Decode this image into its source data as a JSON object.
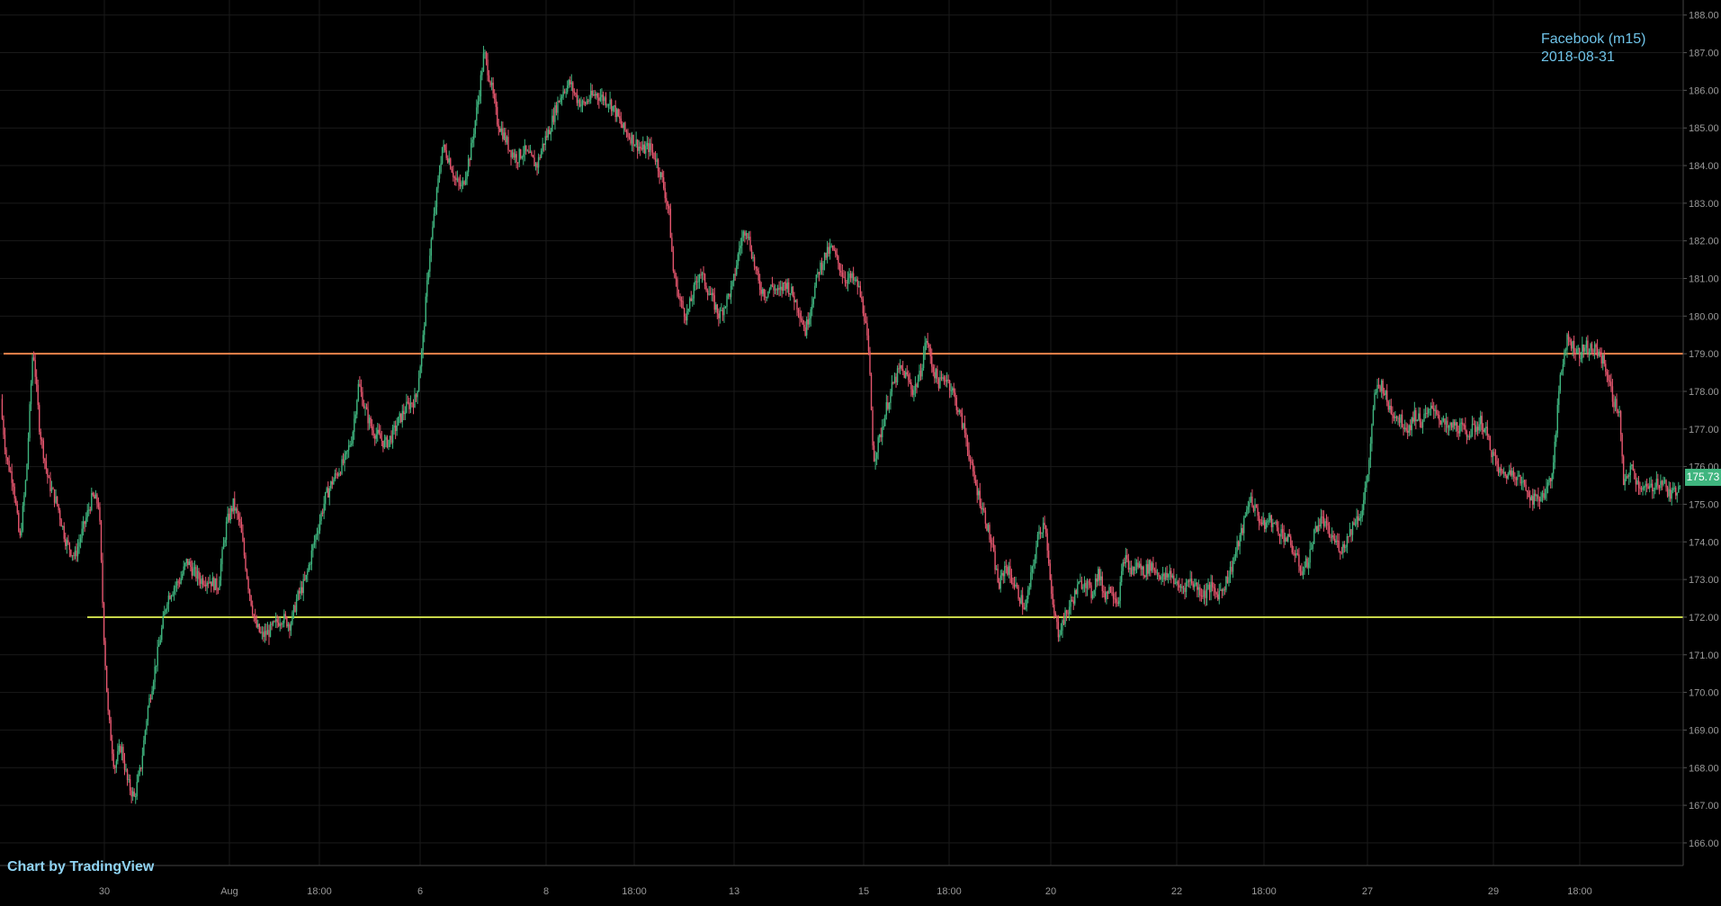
{
  "chart_data": {
    "type": "candlestick",
    "symbol": "Facebook (m15)",
    "date": "2018-08-31",
    "credit": {
      "prefix": "Chart by",
      "brand": "TradingView"
    },
    "last_price": "175.73",
    "ylim": [
      165.4,
      188.4
    ],
    "y_ticks": [
      "166.00",
      "167.00",
      "168.00",
      "169.00",
      "170.00",
      "171.00",
      "172.00",
      "173.00",
      "174.00",
      "175.00",
      "176.00",
      "177.00",
      "178.00",
      "179.00",
      "180.00",
      "181.00",
      "182.00",
      "183.00",
      "184.00",
      "185.00",
      "186.00",
      "187.00",
      "188.00"
    ],
    "x_ticks": [
      "30",
      "Aug",
      "18:00",
      "6",
      "8",
      "18:00",
      "13",
      "15",
      "18:00",
      "20",
      "22",
      "18:00",
      "27",
      "29",
      "18:00"
    ],
    "horizontal_lines": [
      {
        "value": 179.0,
        "color": "#f0844c"
      },
      {
        "value": 172.0,
        "color": "#c8d64a"
      }
    ],
    "price_path": [
      [
        0,
        177.8
      ],
      [
        6,
        176.2
      ],
      [
        12,
        175.6
      ],
      [
        18,
        174.0
      ],
      [
        24,
        175.8
      ],
      [
        30,
        179.2
      ],
      [
        36,
        177.0
      ],
      [
        44,
        175.6
      ],
      [
        52,
        175.0
      ],
      [
        60,
        174.0
      ],
      [
        68,
        173.6
      ],
      [
        76,
        174.4
      ],
      [
        84,
        175.2
      ],
      [
        90,
        175.0
      ],
      [
        94,
        171.8
      ],
      [
        98,
        169.5
      ],
      [
        104,
        168.0
      ],
      [
        110,
        168.6
      ],
      [
        116,
        167.6
      ],
      [
        122,
        167.2
      ],
      [
        128,
        168.0
      ],
      [
        134,
        169.5
      ],
      [
        140,
        170.5
      ],
      [
        146,
        171.5
      ],
      [
        152,
        172.5
      ],
      [
        158,
        172.8
      ],
      [
        164,
        173.0
      ],
      [
        170,
        173.5
      ],
      [
        176,
        173.2
      ],
      [
        182,
        173.0
      ],
      [
        190,
        173.0
      ],
      [
        198,
        172.8
      ],
      [
        206,
        174.5
      ],
      [
        212,
        175.0
      ],
      [
        218,
        174.5
      ],
      [
        226,
        172.8
      ],
      [
        232,
        171.8
      ],
      [
        238,
        171.5
      ],
      [
        244,
        171.6
      ],
      [
        250,
        171.8
      ],
      [
        256,
        172.0
      ],
      [
        264,
        171.8
      ],
      [
        270,
        172.5
      ],
      [
        278,
        173.0
      ],
      [
        284,
        173.8
      ],
      [
        290,
        174.5
      ],
      [
        296,
        175.2
      ],
      [
        302,
        175.6
      ],
      [
        308,
        175.9
      ],
      [
        314,
        176.2
      ],
      [
        320,
        176.8
      ],
      [
        326,
        178.2
      ],
      [
        332,
        177.5
      ],
      [
        338,
        177.0
      ],
      [
        344,
        176.8
      ],
      [
        350,
        176.6
      ],
      [
        356,
        176.8
      ],
      [
        362,
        177.2
      ],
      [
        370,
        177.6
      ],
      [
        378,
        177.8
      ],
      [
        384,
        179.2
      ],
      [
        390,
        181.5
      ],
      [
        396,
        183.0
      ],
      [
        402,
        184.5
      ],
      [
        408,
        184.2
      ],
      [
        414,
        183.6
      ],
      [
        420,
        183.4
      ],
      [
        428,
        184.4
      ],
      [
        434,
        185.6
      ],
      [
        440,
        187.0
      ],
      [
        446,
        186.2
      ],
      [
        452,
        185.2
      ],
      [
        458,
        184.8
      ],
      [
        464,
        184.4
      ],
      [
        470,
        184.2
      ],
      [
        476,
        184.4
      ],
      [
        482,
        184.2
      ],
      [
        488,
        184.0
      ],
      [
        494,
        184.6
      ],
      [
        500,
        185.0
      ],
      [
        506,
        185.6
      ],
      [
        512,
        186.0
      ],
      [
        518,
        186.2
      ],
      [
        524,
        185.8
      ],
      [
        530,
        185.6
      ],
      [
        536,
        185.8
      ],
      [
        542,
        185.9
      ],
      [
        548,
        185.8
      ],
      [
        554,
        185.7
      ],
      [
        560,
        185.4
      ],
      [
        566,
        185.0
      ],
      [
        572,
        184.8
      ],
      [
        578,
        184.6
      ],
      [
        584,
        184.4
      ],
      [
        590,
        184.5
      ],
      [
        596,
        184.2
      ],
      [
        602,
        183.6
      ],
      [
        608,
        182.8
      ],
      [
        612,
        181.2
      ],
      [
        618,
        180.4
      ],
      [
        624,
        180.0
      ],
      [
        630,
        180.6
      ],
      [
        636,
        181.2
      ],
      [
        642,
        180.8
      ],
      [
        648,
        180.4
      ],
      [
        654,
        180.0
      ],
      [
        660,
        180.4
      ],
      [
        666,
        180.8
      ],
      [
        672,
        181.8
      ],
      [
        678,
        182.4
      ],
      [
        684,
        181.6
      ],
      [
        690,
        180.8
      ],
      [
        696,
        180.6
      ],
      [
        702,
        180.8
      ],
      [
        708,
        180.6
      ],
      [
        714,
        180.9
      ],
      [
        720,
        180.6
      ],
      [
        726,
        180.2
      ],
      [
        732,
        179.6
      ],
      [
        738,
        180.4
      ],
      [
        744,
        181.2
      ],
      [
        750,
        181.6
      ],
      [
        756,
        181.8
      ],
      [
        762,
        181.4
      ],
      [
        768,
        181.0
      ],
      [
        774,
        181.0
      ],
      [
        780,
        180.8
      ],
      [
        786,
        180.0
      ],
      [
        790,
        178.8
      ],
      [
        794,
        176.2
      ],
      [
        800,
        176.8
      ],
      [
        806,
        177.6
      ],
      [
        812,
        178.2
      ],
      [
        818,
        178.6
      ],
      [
        824,
        178.4
      ],
      [
        830,
        178.0
      ],
      [
        836,
        178.4
      ],
      [
        842,
        179.4
      ],
      [
        848,
        178.6
      ],
      [
        854,
        178.2
      ],
      [
        860,
        178.4
      ],
      [
        866,
        178.0
      ],
      [
        872,
        177.4
      ],
      [
        878,
        176.8
      ],
      [
        884,
        175.8
      ],
      [
        890,
        175.2
      ],
      [
        896,
        174.6
      ],
      [
        902,
        173.8
      ],
      [
        908,
        172.8
      ],
      [
        914,
        173.4
      ],
      [
        920,
        173.0
      ],
      [
        926,
        172.6
      ],
      [
        932,
        172.2
      ],
      [
        938,
        173.2
      ],
      [
        944,
        174.2
      ],
      [
        950,
        174.6
      ],
      [
        956,
        172.4
      ],
      [
        962,
        171.6
      ],
      [
        968,
        172.0
      ],
      [
        974,
        172.4
      ],
      [
        980,
        172.8
      ],
      [
        986,
        173.0
      ],
      [
        992,
        172.6
      ],
      [
        998,
        173.2
      ],
      [
        1004,
        172.6
      ],
      [
        1010,
        172.8
      ],
      [
        1016,
        172.4
      ],
      [
        1022,
        173.6
      ],
      [
        1028,
        173.2
      ],
      [
        1034,
        173.4
      ],
      [
        1040,
        173.2
      ],
      [
        1046,
        173.4
      ],
      [
        1052,
        173.2
      ],
      [
        1058,
        173.0
      ],
      [
        1064,
        173.2
      ],
      [
        1070,
        172.8
      ],
      [
        1076,
        172.8
      ],
      [
        1082,
        173.0
      ],
      [
        1088,
        172.8
      ],
      [
        1094,
        172.6
      ],
      [
        1100,
        172.8
      ],
      [
        1106,
        172.6
      ],
      [
        1112,
        172.8
      ],
      [
        1118,
        173.2
      ],
      [
        1124,
        173.8
      ],
      [
        1130,
        174.4
      ],
      [
        1136,
        175.2
      ],
      [
        1142,
        174.8
      ],
      [
        1148,
        174.4
      ],
      [
        1154,
        174.6
      ],
      [
        1160,
        174.4
      ],
      [
        1166,
        174.2
      ],
      [
        1172,
        174.0
      ],
      [
        1178,
        173.6
      ],
      [
        1184,
        173.2
      ],
      [
        1190,
        173.6
      ],
      [
        1196,
        174.4
      ],
      [
        1202,
        174.6
      ],
      [
        1208,
        174.2
      ],
      [
        1214,
        174.0
      ],
      [
        1220,
        173.8
      ],
      [
        1226,
        174.2
      ],
      [
        1232,
        174.6
      ],
      [
        1238,
        174.8
      ],
      [
        1244,
        176.0
      ],
      [
        1250,
        178.0
      ],
      [
        1256,
        178.2
      ],
      [
        1262,
        177.6
      ],
      [
        1268,
        177.4
      ],
      [
        1274,
        177.2
      ],
      [
        1280,
        177.0
      ],
      [
        1286,
        177.4
      ],
      [
        1292,
        177.2
      ],
      [
        1298,
        177.4
      ],
      [
        1304,
        177.6
      ],
      [
        1310,
        177.2
      ],
      [
        1316,
        177.0
      ],
      [
        1322,
        177.1
      ],
      [
        1328,
        177.0
      ],
      [
        1334,
        176.9
      ],
      [
        1340,
        177.0
      ],
      [
        1346,
        177.2
      ],
      [
        1352,
        176.8
      ],
      [
        1358,
        176.2
      ],
      [
        1364,
        175.8
      ],
      [
        1370,
        175.8
      ],
      [
        1376,
        175.9
      ],
      [
        1382,
        175.6
      ],
      [
        1388,
        175.4
      ],
      [
        1394,
        175.1
      ],
      [
        1400,
        175.2
      ],
      [
        1406,
        175.4
      ],
      [
        1412,
        176.0
      ],
      [
        1418,
        178.4
      ],
      [
        1424,
        179.4
      ],
      [
        1430,
        179.2
      ],
      [
        1436,
        179.0
      ],
      [
        1442,
        179.2
      ],
      [
        1448,
        179.1
      ],
      [
        1454,
        179.0
      ],
      [
        1460,
        178.6
      ],
      [
        1466,
        177.8
      ],
      [
        1472,
        177.4
      ],
      [
        1476,
        175.4
      ],
      [
        1482,
        176.0
      ],
      [
        1488,
        175.6
      ],
      [
        1494,
        175.4
      ],
      [
        1500,
        175.4
      ],
      [
        1506,
        175.6
      ],
      [
        1512,
        175.6
      ],
      [
        1518,
        175.2
      ],
      [
        1524,
        175.4
      ],
      [
        1528,
        175.73
      ]
    ]
  }
}
